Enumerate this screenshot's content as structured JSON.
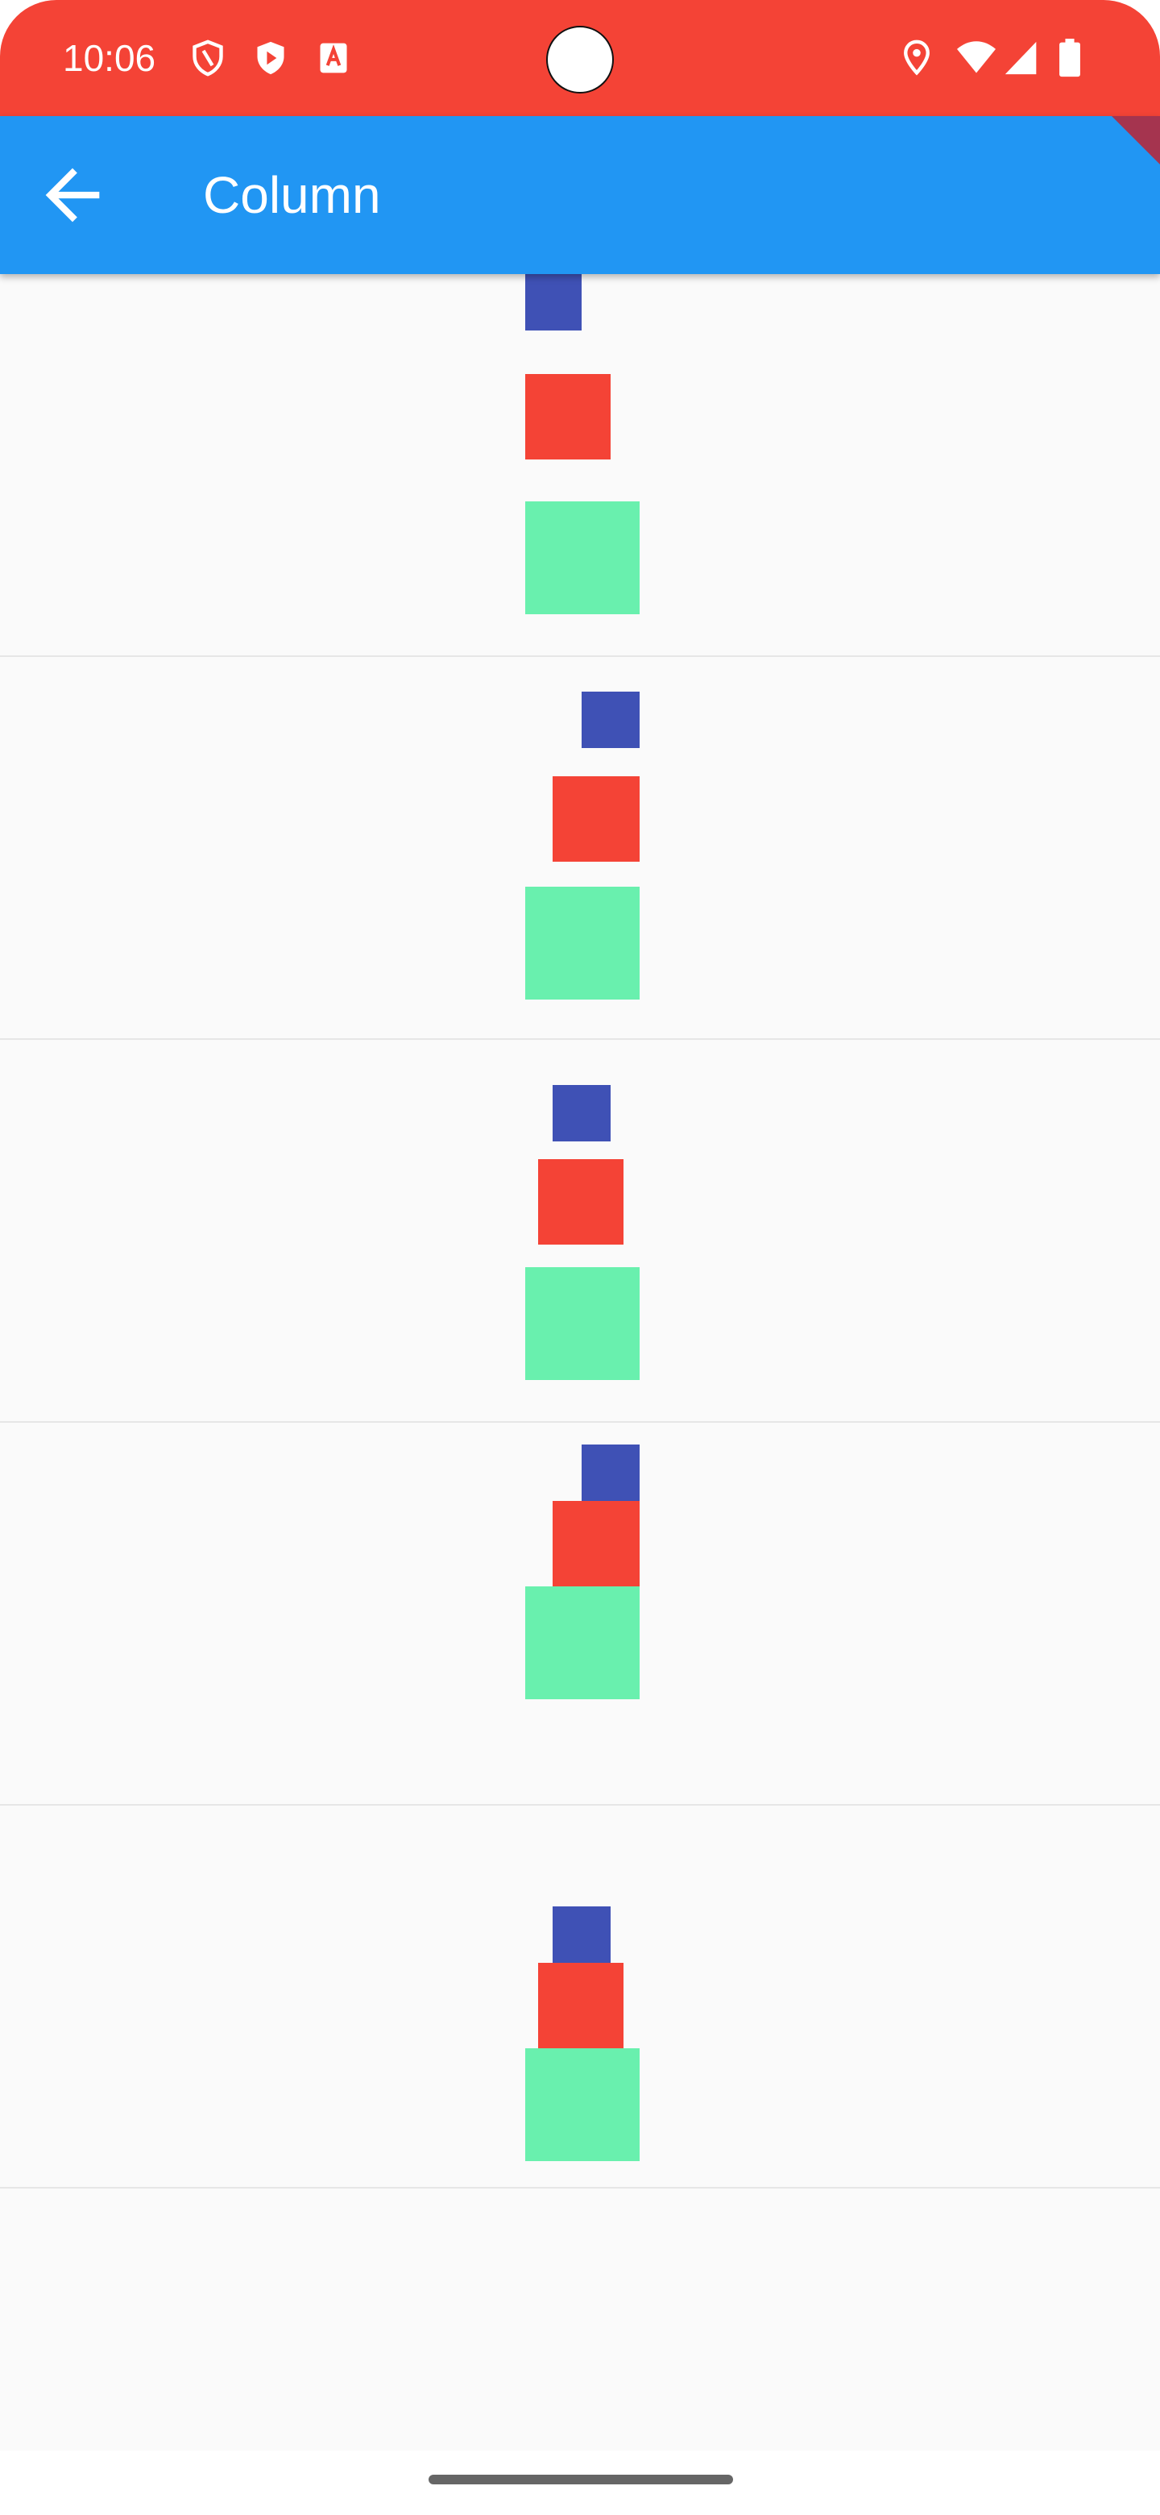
{
  "status_bar": {
    "time": "10:06",
    "color": "#f44336",
    "left_icons": [
      "shield-outline-icon",
      "play-shield-icon",
      "text-a-icon"
    ],
    "right_icons": [
      "location-icon",
      "wifi-icon",
      "signal-icon",
      "battery-icon"
    ]
  },
  "app_bar": {
    "title": "Column",
    "back_icon": "arrow-back-icon",
    "color": "#2196f3"
  },
  "colors": {
    "blue": "#3f51b5",
    "red": "#f44336",
    "green": "#69f0ae",
    "background": "#fafafa"
  },
  "rows": [
    {
      "name": "row-1"
    },
    {
      "name": "row-2"
    },
    {
      "name": "row-3"
    },
    {
      "name": "row-4"
    },
    {
      "name": "row-5"
    }
  ]
}
